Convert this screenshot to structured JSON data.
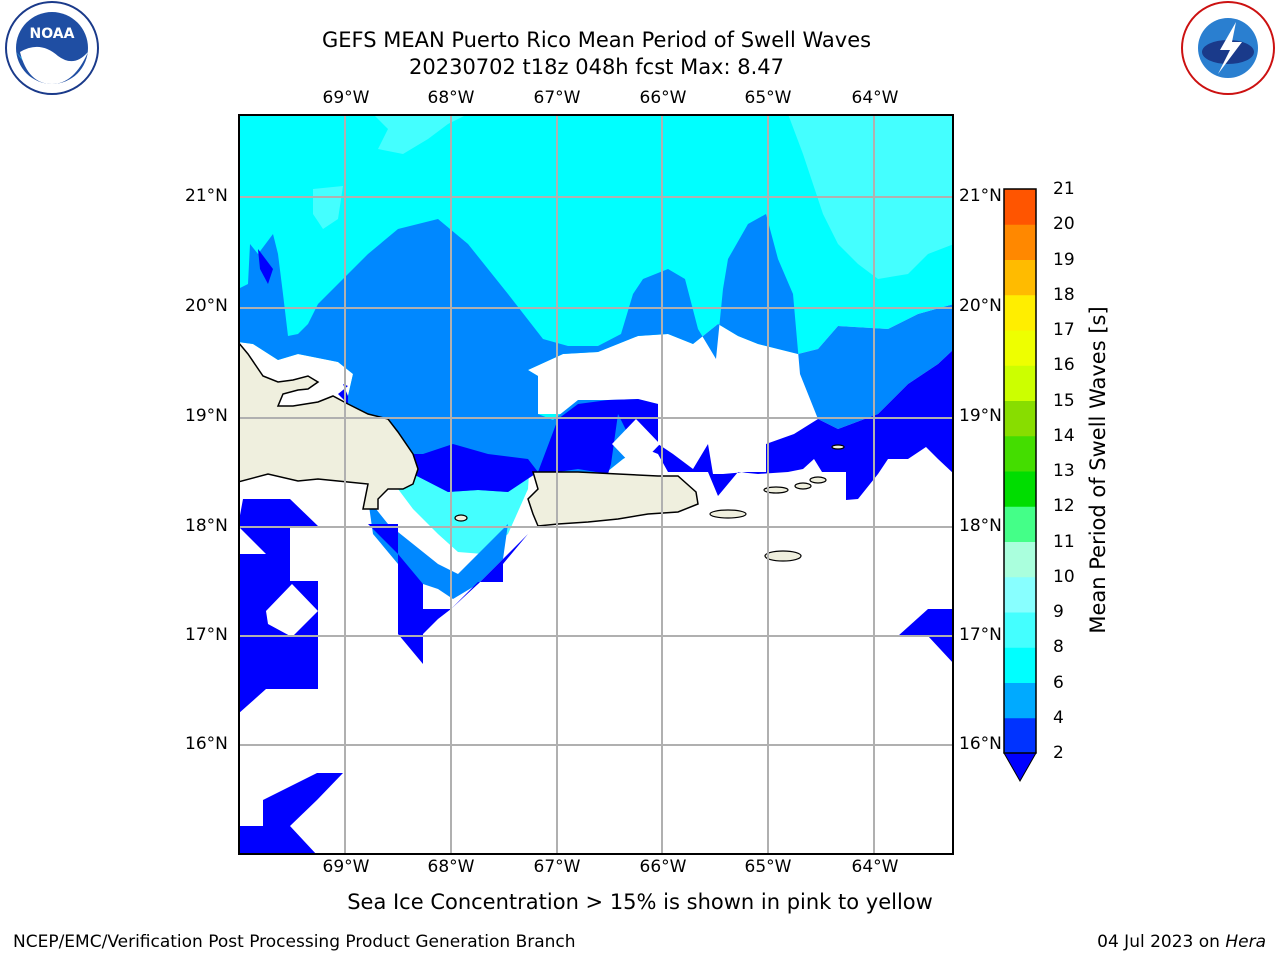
{
  "title_line1": "GEFS MEAN Puerto Rico Mean Period of Swell Waves",
  "title_line2": "20230702 t18z 048h fcst   Max: 8.47",
  "lon_labels": [
    "69°W",
    "68°W",
    "67°W",
    "66°W",
    "65°W",
    "64°W"
  ],
  "lat_labels": [
    "21°N",
    "20°N",
    "19°N",
    "18°N",
    "17°N",
    "16°N"
  ],
  "colorbar": {
    "title": "Mean Period of Swell Waves [s]",
    "ticks": [
      "2",
      "4",
      "6",
      "8",
      "9",
      "10",
      "11",
      "12",
      "13",
      "14",
      "15",
      "16",
      "17",
      "18",
      "19",
      "20",
      "21"
    ],
    "colors": [
      "#0033ff",
      "#00aaff",
      "#00ffff",
      "#44ffff",
      "#88ffff",
      "#aaffdd",
      "#44ff88",
      "#00dd00",
      "#44dd00",
      "#88dd00",
      "#ccff00",
      "#eeff00",
      "#ffee00",
      "#ffbb00",
      "#ff8800",
      "#ff5500",
      "#ff2200",
      "#ff0000"
    ],
    "under_color": "#0000ff"
  },
  "legend_colors": {
    "level_2_4": "#0033ff",
    "level_4_6": "#0088ff",
    "level_6_8": "#00ffff",
    "level_8_9": "#44ffff",
    "land": "#efefde"
  },
  "note": "Sea Ice Concentration > 15% is shown in pink to yellow",
  "footer_left": "NCEP/EMC/Verification Post Processing Product Generation Branch",
  "footer_date": "04 Jul 2023 on ",
  "footer_machine": "Hera"
}
